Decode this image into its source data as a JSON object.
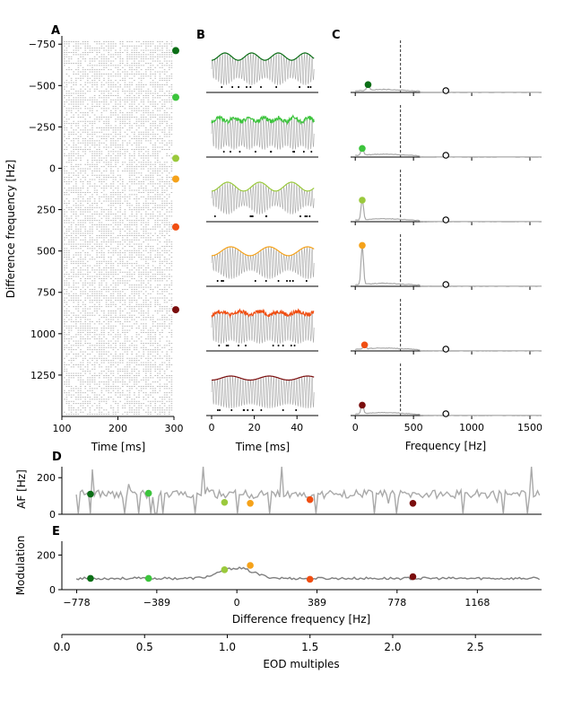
{
  "panels": {
    "A": "A",
    "B": "B",
    "C": "C",
    "D": "D",
    "E": "E"
  },
  "colors": {
    "c1": "#0b6e16",
    "c2": "#3cc43c",
    "c3": "#9ac93c",
    "c4": "#f5a21a",
    "c5": "#f04e12",
    "c6": "#7a0d0d",
    "trace": "#a9a9a9",
    "ruler": "#000000"
  },
  "chart_data": [
    {
      "id": "A",
      "type": "scatter",
      "title": "",
      "xlabel": "Time [ms]",
      "ylabel": "Difference frequency [Hz]",
      "xlim": [
        100,
        300
      ],
      "ylim": [
        -800,
        1500
      ],
      "y_inverted": true,
      "xticks": [
        "100",
        "200",
        "300"
      ],
      "yticks": [
        "−750",
        "−500",
        "−250",
        "0",
        "250",
        "500",
        "750",
        "1000",
        "1250"
      ],
      "markers": [
        {
          "df": -711,
          "color": "c1"
        },
        {
          "df": -429,
          "color": "c2"
        },
        {
          "df": -60,
          "color": "c3"
        },
        {
          "df": 65,
          "color": "c4"
        },
        {
          "df": 355,
          "color": "c5"
        },
        {
          "df": 855,
          "color": "c6"
        }
      ]
    },
    {
      "id": "B",
      "type": "line",
      "xlabel": "Time [ms]",
      "xlim": [
        -1,
        50
      ],
      "xticks": [
        "0",
        "20",
        "40"
      ],
      "rows": 6
    },
    {
      "id": "C",
      "type": "line",
      "xlabel": "Frequency [Hz]",
      "xlim": [
        -40,
        1600
      ],
      "xticks": [
        "0",
        "500",
        "1000",
        "1500"
      ],
      "dashed_x": 389,
      "colored_peaks": [
        {
          "x": 110,
          "y": 0.18,
          "color": "c1"
        },
        {
          "x": 60,
          "y": 0.2,
          "color": "c2"
        },
        {
          "x": 60,
          "y": 0.5,
          "color": "c3"
        },
        {
          "x": 60,
          "y": 0.95,
          "color": "c4"
        },
        {
          "x": 80,
          "y": 0.14,
          "color": "c5"
        },
        {
          "x": 60,
          "y": 0.24,
          "color": "c6"
        }
      ],
      "open_marker_x": 778
    },
    {
      "id": "D",
      "type": "line",
      "ylabel": "AF [Hz]",
      "xlim": [
        -850,
        1480
      ],
      "ylim": [
        0,
        260
      ],
      "yticks": [
        "0",
        "200"
      ],
      "points": [
        {
          "x": -711,
          "y": 110,
          "color": "c1"
        },
        {
          "x": -429,
          "y": 115,
          "color": "c2"
        },
        {
          "x": -60,
          "y": 65,
          "color": "c3"
        },
        {
          "x": 65,
          "y": 60,
          "color": "c4"
        },
        {
          "x": 355,
          "y": 80,
          "color": "c5"
        },
        {
          "x": 855,
          "y": 60,
          "color": "c6"
        }
      ]
    },
    {
      "id": "E",
      "type": "line",
      "ylabel": "Modulation",
      "xlabel": "Difference frequency [Hz]",
      "xlim": [
        -850,
        1480
      ],
      "ylim": [
        0,
        280
      ],
      "yticks": [
        "0",
        "200"
      ],
      "xticks": [
        "−778",
        "−389",
        "0",
        "389",
        "778",
        "1168"
      ],
      "points": [
        {
          "x": -711,
          "y": 65,
          "color": "c1"
        },
        {
          "x": -429,
          "y": 65,
          "color": "c2"
        },
        {
          "x": -60,
          "y": 115,
          "color": "c3"
        },
        {
          "x": 65,
          "y": 140,
          "color": "c4"
        },
        {
          "x": 355,
          "y": 60,
          "color": "c5"
        },
        {
          "x": 855,
          "y": 75,
          "color": "c6"
        }
      ]
    },
    {
      "id": "EOD",
      "type": "axis",
      "xlabel": "EOD multiples",
      "xlim": [
        0,
        2.9
      ],
      "xticks": [
        "0.0",
        "0.5",
        "1.0",
        "1.5",
        "2.0",
        "2.5"
      ]
    }
  ]
}
